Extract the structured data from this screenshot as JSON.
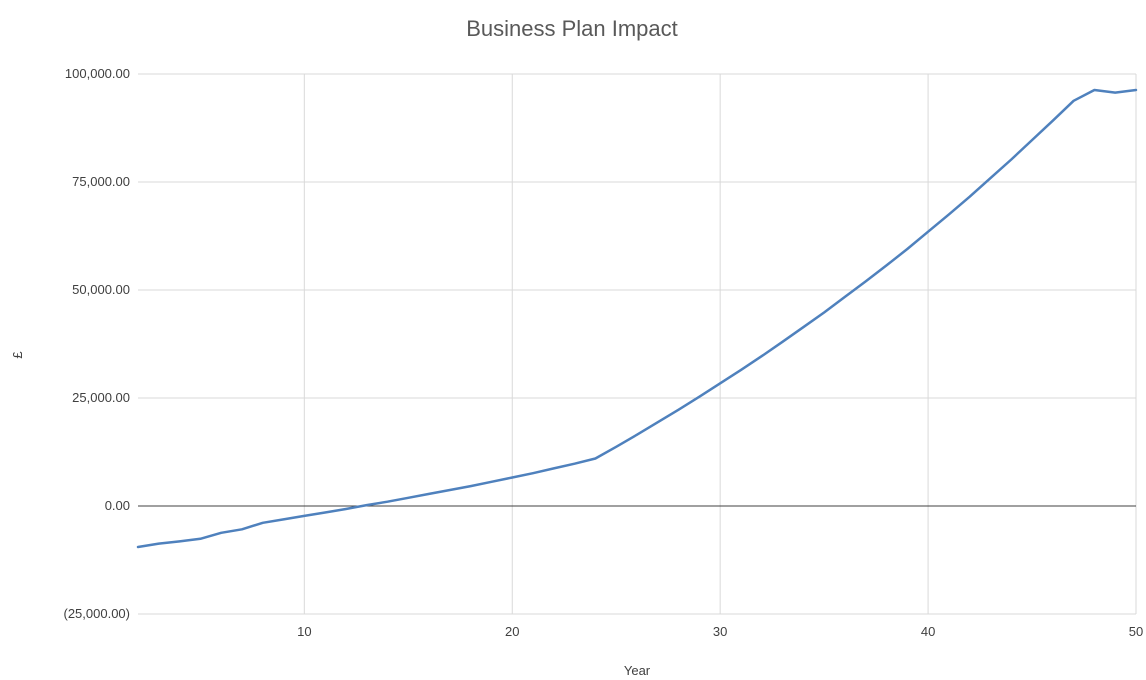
{
  "chart_data": {
    "type": "line",
    "title": "Business Plan Impact",
    "xlabel": "Year",
    "ylabel": "£",
    "xlim": [
      2,
      50
    ],
    "ylim": [
      -25000,
      100000
    ],
    "x_ticks": [
      10,
      20,
      30,
      40,
      50
    ],
    "y_ticks": [
      -25000,
      0,
      25000,
      50000,
      75000,
      100000
    ],
    "y_tick_labels": [
      "(25,000.00)",
      "0.00",
      "25,000.00",
      "50,000.00",
      "75,000.00",
      "100,000.00"
    ],
    "grid": true,
    "zero_line": true,
    "series": [
      {
        "color": "#4f81bd",
        "x": [
          2,
          3,
          4,
          5,
          6,
          7,
          8,
          9,
          10,
          11,
          12,
          13,
          14,
          15,
          16,
          17,
          18,
          19,
          20,
          21,
          22,
          23,
          24,
          25,
          26,
          27,
          28,
          29,
          30,
          31,
          32,
          33,
          34,
          35,
          36,
          37,
          38,
          39,
          40,
          41,
          42,
          43,
          44,
          45,
          46,
          47,
          48,
          49,
          50
        ],
        "values": [
          -9500,
          -8700,
          -8200,
          -7600,
          -6200,
          -5400,
          -3900,
          -3100,
          -2300,
          -1500,
          -700,
          200,
          1000,
          1900,
          2800,
          3700,
          4600,
          5600,
          6600,
          7600,
          8700,
          9800,
          11000,
          13700,
          16500,
          19400,
          22300,
          25300,
          28400,
          31500,
          34700,
          38000,
          41400,
          44800,
          48400,
          52000,
          55700,
          59500,
          63500,
          67500,
          71600,
          75900,
          80200,
          84700,
          89200,
          93800,
          96300,
          95700,
          96300
        ]
      }
    ]
  }
}
